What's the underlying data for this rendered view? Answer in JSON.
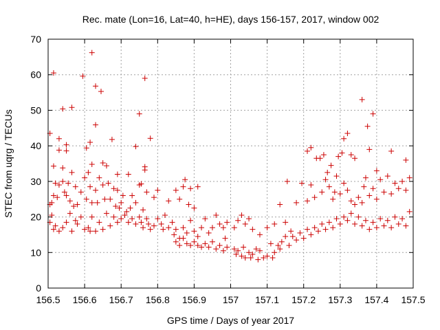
{
  "chart_data": {
    "type": "scatter",
    "title": "Rec. mate (Lon=16, Lat=40, h=HE), days 156-157, 2017, window 002",
    "xlabel": "GPS time / Days of year 2017",
    "ylabel": "STEC from uqrg / TECUs",
    "xlim": [
      156.5,
      157.5
    ],
    "ylim": [
      0,
      70
    ],
    "x_ticks": [
      156.5,
      156.6,
      156.7,
      156.8,
      156.9,
      157,
      157.1,
      157.2,
      157.3,
      157.4,
      157.5
    ],
    "x_tick_labels": [
      "156.5",
      "156.6",
      "156.7",
      "156.8",
      "156.9",
      "157",
      "157.1",
      "157.2",
      "157.3",
      "157.4",
      "157.5"
    ],
    "y_ticks": [
      0,
      10,
      20,
      30,
      40,
      50,
      60,
      70
    ],
    "y_tick_labels": [
      "0",
      "10",
      "20",
      "30",
      "40",
      "50",
      "60",
      "70"
    ],
    "grid": true,
    "marker": "plus",
    "color": "#cc0000",
    "series": [
      {
        "points": [
          [
            156.505,
            43.5
          ],
          [
            156.515,
            60.5
          ],
          [
            156.515,
            34.3
          ],
          [
            156.53,
            42.0
          ],
          [
            156.53,
            38.8
          ],
          [
            156.54,
            50.4
          ],
          [
            156.54,
            33.8
          ],
          [
            156.55,
            40.3
          ],
          [
            156.55,
            38.6
          ],
          [
            156.565,
            50.8
          ],
          [
            156.565,
            32.5
          ],
          [
            156.595,
            59.6
          ],
          [
            156.605,
            39.4
          ],
          [
            156.615,
            41.0
          ],
          [
            156.62,
            66.2
          ],
          [
            156.62,
            34.8
          ],
          [
            156.63,
            56.8
          ],
          [
            156.63,
            45.9
          ],
          [
            156.645,
            55.3
          ],
          [
            156.65,
            35.2
          ],
          [
            156.66,
            34.4
          ],
          [
            156.675,
            41.8
          ],
          [
            156.69,
            32.0
          ],
          [
            156.72,
            32.0
          ],
          [
            156.74,
            39.8
          ],
          [
            156.75,
            49.0
          ],
          [
            156.755,
            29.3
          ],
          [
            156.765,
            59.0
          ],
          [
            156.765,
            34.1
          ],
          [
            156.765,
            33.2
          ],
          [
            156.78,
            42.1
          ],
          [
            156.505,
            23.5
          ],
          [
            156.51,
            24.0
          ],
          [
            156.515,
            26.0
          ],
          [
            156.52,
            29.5
          ],
          [
            156.525,
            25.5
          ],
          [
            156.53,
            29.0
          ],
          [
            156.54,
            30.0
          ],
          [
            156.545,
            27.0
          ],
          [
            156.55,
            26.0
          ],
          [
            156.555,
            29.5
          ],
          [
            156.56,
            24.5
          ],
          [
            156.57,
            23.0
          ],
          [
            156.575,
            28.5
          ],
          [
            156.58,
            23.5
          ],
          [
            156.59,
            27.0
          ],
          [
            156.6,
            31.0
          ],
          [
            156.605,
            25.0
          ],
          [
            156.61,
            32.5
          ],
          [
            156.615,
            28.5
          ],
          [
            156.62,
            24.0
          ],
          [
            156.63,
            27.5
          ],
          [
            156.635,
            24.0
          ],
          [
            156.64,
            31.0
          ],
          [
            156.65,
            29.0
          ],
          [
            156.655,
            25.0
          ],
          [
            156.665,
            29.5
          ],
          [
            156.67,
            25.0
          ],
          [
            156.68,
            28.0
          ],
          [
            156.685,
            23.0
          ],
          [
            156.69,
            27.5
          ],
          [
            156.7,
            24.0
          ],
          [
            156.705,
            26.0
          ],
          [
            156.715,
            21.5
          ],
          [
            156.725,
            22.5
          ],
          [
            156.73,
            26.0
          ],
          [
            156.74,
            24.0
          ],
          [
            156.75,
            29.0
          ],
          [
            156.76,
            22.0
          ],
          [
            156.77,
            27.0
          ],
          [
            156.79,
            25.5
          ],
          [
            156.8,
            27.5
          ],
          [
            156.83,
            24.5
          ],
          [
            156.85,
            27.5
          ],
          [
            156.86,
            25.0
          ],
          [
            156.87,
            28.5
          ],
          [
            156.875,
            30.5
          ],
          [
            156.885,
            23.5
          ],
          [
            156.89,
            28.0
          ],
          [
            156.9,
            22.5
          ],
          [
            156.91,
            28.5
          ],
          [
            156.505,
            18.5
          ],
          [
            156.51,
            20.5
          ],
          [
            156.515,
            16.5
          ],
          [
            156.52,
            17.5
          ],
          [
            156.53,
            16.0
          ],
          [
            156.54,
            17.0
          ],
          [
            156.55,
            18.5
          ],
          [
            156.56,
            21.0
          ],
          [
            156.565,
            16.0
          ],
          [
            156.575,
            19.0
          ],
          [
            156.58,
            18.0
          ],
          [
            156.59,
            20.0
          ],
          [
            156.6,
            16.5
          ],
          [
            156.61,
            17.0
          ],
          [
            156.615,
            16.0
          ],
          [
            156.62,
            20.0
          ],
          [
            156.63,
            16.0
          ],
          [
            156.64,
            18.5
          ],
          [
            156.65,
            16.5
          ],
          [
            156.66,
            21.0
          ],
          [
            156.67,
            17.5
          ],
          [
            156.68,
            20.0
          ],
          [
            156.69,
            18.5
          ],
          [
            156.695,
            22.5
          ],
          [
            156.7,
            19.5
          ],
          [
            156.71,
            20.5
          ],
          [
            156.72,
            18.5
          ],
          [
            156.73,
            19.5
          ],
          [
            156.74,
            18.0
          ],
          [
            156.75,
            20.0
          ],
          [
            156.755,
            18.5
          ],
          [
            156.76,
            17.0
          ],
          [
            156.77,
            19.5
          ],
          [
            156.775,
            18.0
          ],
          [
            156.78,
            16.5
          ],
          [
            156.79,
            17.5
          ],
          [
            156.8,
            19.5
          ],
          [
            156.81,
            18.0
          ],
          [
            156.815,
            16.5
          ],
          [
            156.82,
            20.5
          ],
          [
            156.83,
            17.0
          ],
          [
            156.84,
            18.5
          ],
          [
            156.845,
            15.0
          ],
          [
            156.85,
            16.5
          ],
          [
            156.86,
            14.0
          ],
          [
            156.87,
            17.0
          ],
          [
            156.88,
            15.5
          ],
          [
            156.89,
            19.0
          ],
          [
            156.9,
            16.0
          ],
          [
            156.91,
            14.5
          ],
          [
            156.92,
            17.0
          ],
          [
            156.93,
            19.5
          ],
          [
            156.94,
            15.5
          ],
          [
            156.95,
            17.0
          ],
          [
            156.96,
            20.5
          ],
          [
            156.97,
            18.0
          ],
          [
            156.98,
            17.0
          ],
          [
            156.985,
            14.0
          ],
          [
            156.99,
            18.5
          ],
          [
            156.85,
            13.0
          ],
          [
            156.86,
            12.0
          ],
          [
            156.87,
            14.0
          ],
          [
            156.88,
            12.5
          ],
          [
            156.89,
            12.0
          ],
          [
            156.9,
            13.0
          ],
          [
            156.91,
            12.0
          ],
          [
            156.92,
            11.5
          ],
          [
            156.93,
            12.5
          ],
          [
            156.94,
            11.5
          ],
          [
            156.95,
            13.0
          ],
          [
            156.96,
            11.0
          ],
          [
            156.97,
            12.0
          ],
          [
            156.98,
            10.5
          ],
          [
            156.99,
            11.5
          ],
          [
            157.01,
            17.0
          ],
          [
            157.02,
            19.0
          ],
          [
            157.03,
            20.5
          ],
          [
            157.04,
            18.0
          ],
          [
            157.05,
            19.5
          ],
          [
            157.06,
            16.5
          ],
          [
            157.08,
            15.0
          ],
          [
            157.1,
            17.0
          ],
          [
            157.12,
            18.0
          ],
          [
            157.135,
            23.5
          ],
          [
            157.15,
            18.5
          ],
          [
            157.155,
            30.0
          ],
          [
            157.18,
            24.0
          ],
          [
            157.195,
            29.5
          ],
          [
            157.21,
            38.5
          ],
          [
            157.22,
            39.5
          ],
          [
            157.235,
            36.5
          ],
          [
            157.245,
            36.5
          ],
          [
            157.255,
            37.5
          ],
          [
            157.265,
            32.5
          ],
          [
            157.275,
            34.5
          ],
          [
            157.285,
            27.0
          ],
          [
            157.29,
            31.5
          ],
          [
            157.295,
            37.0
          ],
          [
            157.305,
            38.0
          ],
          [
            157.31,
            42.0
          ],
          [
            157.32,
            43.5
          ],
          [
            157.33,
            37.5
          ],
          [
            157.34,
            36.5
          ],
          [
            157.36,
            53.0
          ],
          [
            157.375,
            45.5
          ],
          [
            157.38,
            39.0
          ],
          [
            157.39,
            49.0
          ],
          [
            157.4,
            33.0
          ],
          [
            157.44,
            38.5
          ],
          [
            157.48,
            36.0
          ],
          [
            157.01,
            11.0
          ],
          [
            157.015,
            9.5
          ],
          [
            157.02,
            10.5
          ],
          [
            157.03,
            9.0
          ],
          [
            157.035,
            11.5
          ],
          [
            157.04,
            8.5
          ],
          [
            157.05,
            10.0
          ],
          [
            157.055,
            8.5
          ],
          [
            157.06,
            9.5
          ],
          [
            157.07,
            11.0
          ],
          [
            157.075,
            8.0
          ],
          [
            157.08,
            10.5
          ],
          [
            157.09,
            8.5
          ],
          [
            157.1,
            9.0
          ],
          [
            157.11,
            12.5
          ],
          [
            157.115,
            8.5
          ],
          [
            157.12,
            10.0
          ],
          [
            157.13,
            12.0
          ],
          [
            157.135,
            11.0
          ],
          [
            157.14,
            13.0
          ],
          [
            157.15,
            14.5
          ],
          [
            157.16,
            12.0
          ],
          [
            157.165,
            16.0
          ],
          [
            157.17,
            14.5
          ],
          [
            157.18,
            13.5
          ],
          [
            157.19,
            15.5
          ],
          [
            157.2,
            14.0
          ],
          [
            157.21,
            16.5
          ],
          [
            157.22,
            15.0
          ],
          [
            157.23,
            17.0
          ],
          [
            157.24,
            16.0
          ],
          [
            157.25,
            18.0
          ],
          [
            157.26,
            16.5
          ],
          [
            157.27,
            18.5
          ],
          [
            157.28,
            17.0
          ],
          [
            157.29,
            19.5
          ],
          [
            157.3,
            18.0
          ],
          [
            157.31,
            20.0
          ],
          [
            157.32,
            19.0
          ],
          [
            157.33,
            21.0
          ],
          [
            157.34,
            18.0
          ],
          [
            157.35,
            20.0
          ],
          [
            157.36,
            17.5
          ],
          [
            157.37,
            19.0
          ],
          [
            157.38,
            16.5
          ],
          [
            157.39,
            18.5
          ],
          [
            157.4,
            17.0
          ],
          [
            157.41,
            19.5
          ],
          [
            157.42,
            17.5
          ],
          [
            157.43,
            19.0
          ],
          [
            157.44,
            17.0
          ],
          [
            157.45,
            20.0
          ],
          [
            157.46,
            18.0
          ],
          [
            157.47,
            19.5
          ],
          [
            157.48,
            17.5
          ],
          [
            157.49,
            21.5
          ],
          [
            157.21,
            24.5
          ],
          [
            157.22,
            29.0
          ],
          [
            157.23,
            25.5
          ],
          [
            157.25,
            27.0
          ],
          [
            157.26,
            30.5
          ],
          [
            157.27,
            28.5
          ],
          [
            157.28,
            25.0
          ],
          [
            157.3,
            26.5
          ],
          [
            157.31,
            29.5
          ],
          [
            157.32,
            27.5
          ],
          [
            157.33,
            24.5
          ],
          [
            157.34,
            23.5
          ],
          [
            157.35,
            25.5
          ],
          [
            157.36,
            24.0
          ],
          [
            157.365,
            28.5
          ],
          [
            157.37,
            31.0
          ],
          [
            157.38,
            26.0
          ],
          [
            157.39,
            28.0
          ],
          [
            157.4,
            25.0
          ],
          [
            157.41,
            30.5
          ],
          [
            157.42,
            27.0
          ],
          [
            157.43,
            31.5
          ],
          [
            157.44,
            26.5
          ],
          [
            157.45,
            29.5
          ],
          [
            157.46,
            28.0
          ],
          [
            157.47,
            30.0
          ],
          [
            157.48,
            27.5
          ],
          [
            157.49,
            31.0
          ]
        ]
      }
    ]
  }
}
